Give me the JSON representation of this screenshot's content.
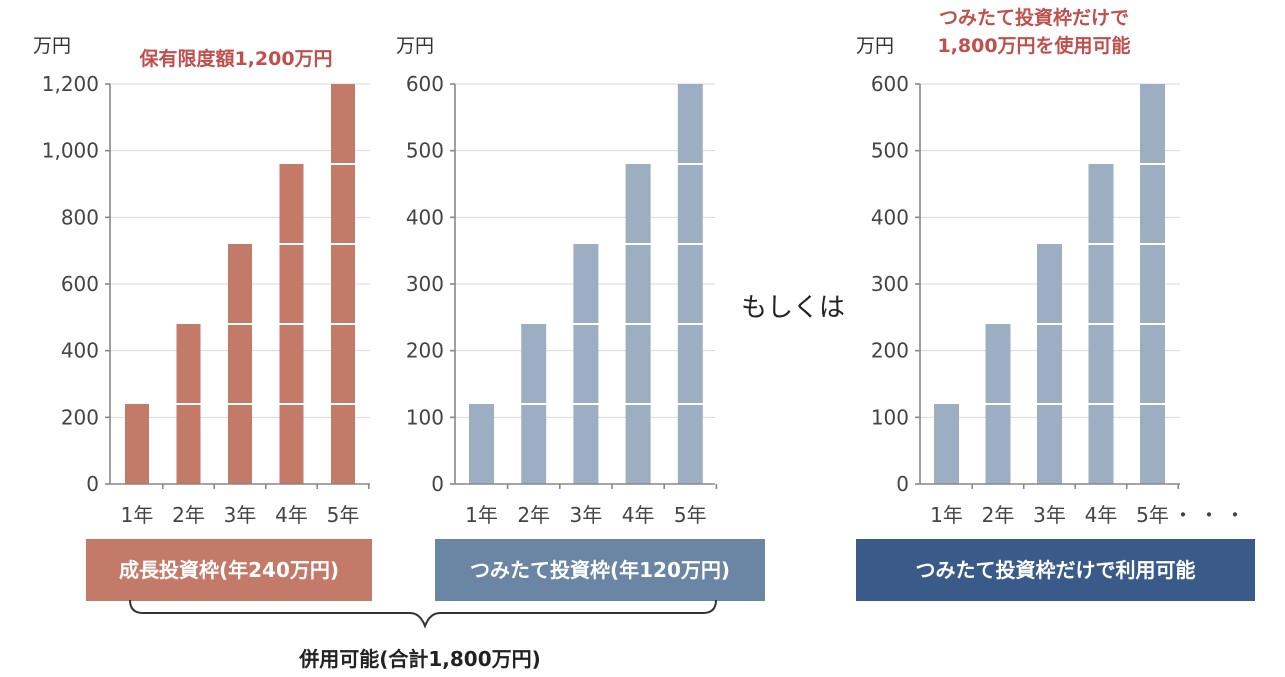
{
  "unit_label": "万円",
  "or_label": "もしくは",
  "ellipsis": "・・・",
  "combined_label": "併用可能(合計1,800万円)",
  "chart_data": [
    {
      "type": "bar",
      "ylabel": "万円",
      "annotation": "保有限度額1,200万円",
      "annotation_lines": [
        "保有限度額1,200万円"
      ],
      "caption": "成長投資枠(年240万円)",
      "categories": [
        "1年",
        "2年",
        "3年",
        "4年",
        "5年"
      ],
      "values": [
        240,
        480,
        720,
        960,
        1200
      ],
      "yearly_increment": 240,
      "ylim": [
        0,
        1200
      ],
      "yticks": [
        0,
        200,
        400,
        600,
        800,
        1000,
        1200
      ],
      "ytick_labels": [
        "0",
        "200",
        "400",
        "600",
        "800",
        "1,000",
        "1,200"
      ],
      "grid": true,
      "bar_color": "#c47a68",
      "caption_color": "#c47a68"
    },
    {
      "type": "bar",
      "ylabel": "万円",
      "caption": "つみたて投資枠(年120万円)",
      "categories": [
        "1年",
        "2年",
        "3年",
        "4年",
        "5年"
      ],
      "values": [
        120,
        240,
        360,
        480,
        600
      ],
      "yearly_increment": 120,
      "ylim": [
        0,
        600
      ],
      "yticks": [
        0,
        100,
        200,
        300,
        400,
        500,
        600
      ],
      "ytick_labels": [
        "0",
        "100",
        "200",
        "300",
        "400",
        "500",
        "600"
      ],
      "grid": true,
      "bar_color": "#9daec3",
      "caption_color": "#6a86a4"
    },
    {
      "type": "bar",
      "ylabel": "万円",
      "annotation": "つみたて投資枠だけで 1,800万円を使用可能",
      "annotation_lines": [
        "つみたて投資枠だけで",
        "1,800万円を使用可能"
      ],
      "caption": "つみたて投資枠だけで利用可能",
      "categories": [
        "1年",
        "2年",
        "3年",
        "4年",
        "5年"
      ],
      "values": [
        120,
        240,
        360,
        480,
        600
      ],
      "yearly_increment": 120,
      "ylim": [
        0,
        600
      ],
      "yticks": [
        0,
        100,
        200,
        300,
        400,
        500,
        600
      ],
      "ytick_labels": [
        "0",
        "100",
        "200",
        "300",
        "400",
        "500",
        "600"
      ],
      "grid": true,
      "bar_color": "#9daec3",
      "caption_color": "#3a5a8a"
    }
  ]
}
